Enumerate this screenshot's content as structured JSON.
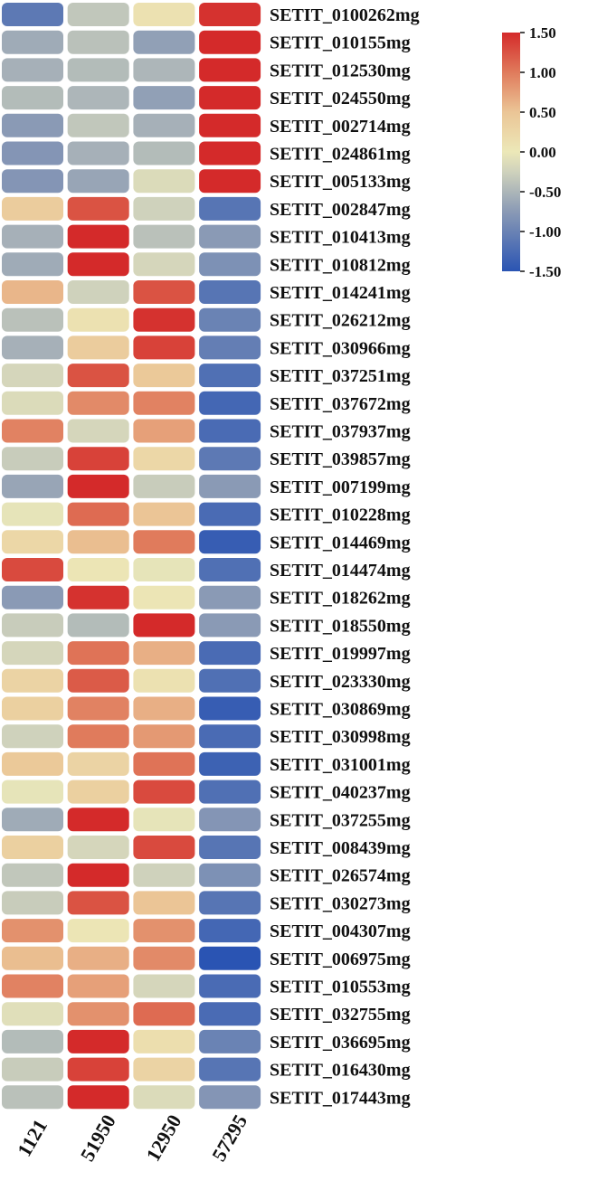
{
  "chart_data": {
    "type": "heatmap",
    "columns": [
      "1121",
      "51950",
      "12950",
      "57295"
    ],
    "rows": [
      "SETIT_0100262mg",
      "SETIT_010155mg",
      "SETIT_012530mg",
      "SETIT_024550mg",
      "SETIT_002714mg",
      "SETIT_024861mg",
      "SETIT_005133mg",
      "SETIT_002847mg",
      "SETIT_010413mg",
      "SETIT_010812mg",
      "SETIT_014241mg",
      "SETIT_026212mg",
      "SETIT_030966mg",
      "SETIT_037251mg",
      "SETIT_037672mg",
      "SETIT_037937mg",
      "SETIT_039857mg",
      "SETIT_007199mg",
      "SETIT_010228mg",
      "SETIT_014469mg",
      "SETIT_014474mg",
      "SETIT_018262mg",
      "SETIT_018550mg",
      "SETIT_019997mg",
      "SETIT_023330mg",
      "SETIT_030869mg",
      "SETIT_030998mg",
      "SETIT_031001mg",
      "SETIT_040237mg",
      "SETIT_037255mg",
      "SETIT_008439mg",
      "SETIT_026574mg",
      "SETIT_030273mg",
      "SETIT_004307mg",
      "SETIT_006975mg",
      "SETIT_010553mg",
      "SETIT_032755mg",
      "SETIT_036695mg",
      "SETIT_016430mg",
      "SETIT_017443mg"
    ],
    "values": [
      [
        -1.1,
        -0.35,
        0.1,
        1.45
      ],
      [
        -0.6,
        -0.4,
        -0.7,
        1.5
      ],
      [
        -0.55,
        -0.45,
        -0.5,
        1.5
      ],
      [
        -0.45,
        -0.5,
        -0.7,
        1.5
      ],
      [
        -0.75,
        -0.35,
        -0.55,
        1.5
      ],
      [
        -0.8,
        -0.55,
        -0.45,
        1.5
      ],
      [
        -0.8,
        -0.65,
        -0.15,
        1.5
      ],
      [
        0.4,
        1.25,
        -0.25,
        -1.15
      ],
      [
        -0.55,
        1.5,
        -0.4,
        -0.75
      ],
      [
        -0.6,
        1.5,
        -0.2,
        -0.85
      ],
      [
        0.6,
        -0.25,
        1.25,
        -1.15
      ],
      [
        -0.4,
        0.1,
        1.45,
        -1.0
      ],
      [
        -0.55,
        0.4,
        1.35,
        -1.05
      ],
      [
        -0.2,
        1.25,
        0.45,
        -1.2
      ],
      [
        -0.15,
        0.9,
        0.95,
        -1.3
      ],
      [
        0.95,
        -0.2,
        0.75,
        -1.25
      ],
      [
        -0.3,
        1.35,
        0.25,
        -1.1
      ],
      [
        -0.65,
        1.5,
        -0.3,
        -0.75
      ],
      [
        -0.05,
        1.1,
        0.5,
        -1.25
      ],
      [
        0.25,
        0.55,
        1.0,
        -1.4
      ],
      [
        1.3,
        0.05,
        -0.05,
        -1.2
      ],
      [
        -0.75,
        1.45,
        0.05,
        -0.75
      ],
      [
        -0.3,
        -0.45,
        1.5,
        -0.75
      ],
      [
        -0.2,
        1.05,
        0.65,
        -1.25
      ],
      [
        0.3,
        1.2,
        0.1,
        -1.2
      ],
      [
        0.35,
        0.95,
        0.65,
        -1.4
      ],
      [
        -0.25,
        1.0,
        0.8,
        -1.25
      ],
      [
        0.45,
        0.3,
        1.05,
        -1.35
      ],
      [
        -0.05,
        0.35,
        1.3,
        -1.2
      ],
      [
        -0.6,
        1.5,
        -0.05,
        -0.8
      ],
      [
        0.35,
        -0.2,
        1.3,
        -1.15
      ],
      [
        -0.35,
        1.5,
        -0.25,
        -0.85
      ],
      [
        -0.3,
        1.25,
        0.5,
        -1.15
      ],
      [
        0.85,
        0.05,
        0.85,
        -1.3
      ],
      [
        0.55,
        0.65,
        0.9,
        -1.5
      ],
      [
        0.95,
        0.75,
        -0.2,
        -1.25
      ],
      [
        -0.1,
        0.85,
        1.1,
        -1.25
      ],
      [
        -0.45,
        1.5,
        0.15,
        -1.0
      ],
      [
        -0.3,
        1.35,
        0.3,
        -1.15
      ],
      [
        -0.4,
        1.5,
        -0.15,
        -0.8
      ]
    ],
    "color_scale": {
      "min": -1.5,
      "max": 1.5,
      "stops": [
        {
          "value": -1.5,
          "color": "#2a54b3"
        },
        {
          "value": -0.75,
          "color": "#8a9ab5"
        },
        {
          "value": -0.25,
          "color": "#cfd2bc"
        },
        {
          "value": 0.0,
          "color": "#ece8b8"
        },
        {
          "value": 0.5,
          "color": "#ebc596"
        },
        {
          "value": 1.0,
          "color": "#e07b5c"
        },
        {
          "value": 1.5,
          "color": "#d42a2a"
        }
      ]
    },
    "colorbar_ticks": [
      "1.50",
      "1.00",
      "0.50",
      "0.00",
      "-0.50",
      "-1.00",
      "-1.50"
    ],
    "colorbar_tick_values": [
      1.5,
      1.0,
      0.5,
      0.0,
      -0.5,
      -1.0,
      -1.5
    ],
    "legend_position": "top-right"
  }
}
